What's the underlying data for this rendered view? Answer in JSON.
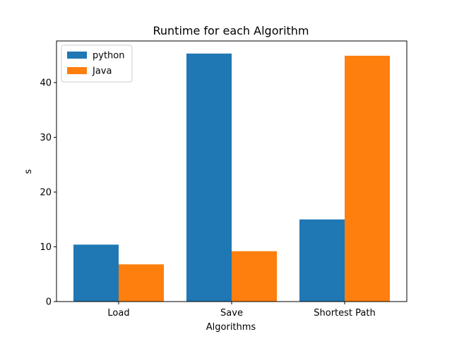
{
  "chart_data": {
    "type": "bar",
    "title": "Runtime for each Algorithm",
    "xlabel": "Algorithms",
    "ylabel": "s",
    "categories": [
      "Load",
      "Save",
      "Shortest Path"
    ],
    "series": [
      {
        "name": "python",
        "color": "#1f77b4",
        "values": [
          10.4,
          45.3,
          15.0
        ]
      },
      {
        "name": "Java",
        "color": "#ff7f0e",
        "values": [
          6.8,
          9.2,
          44.9
        ]
      }
    ],
    "ylim": [
      0,
      47.6
    ],
    "yticks": [
      0,
      10,
      20,
      30,
      40
    ],
    "grid": false,
    "legend_position": "top-left"
  }
}
